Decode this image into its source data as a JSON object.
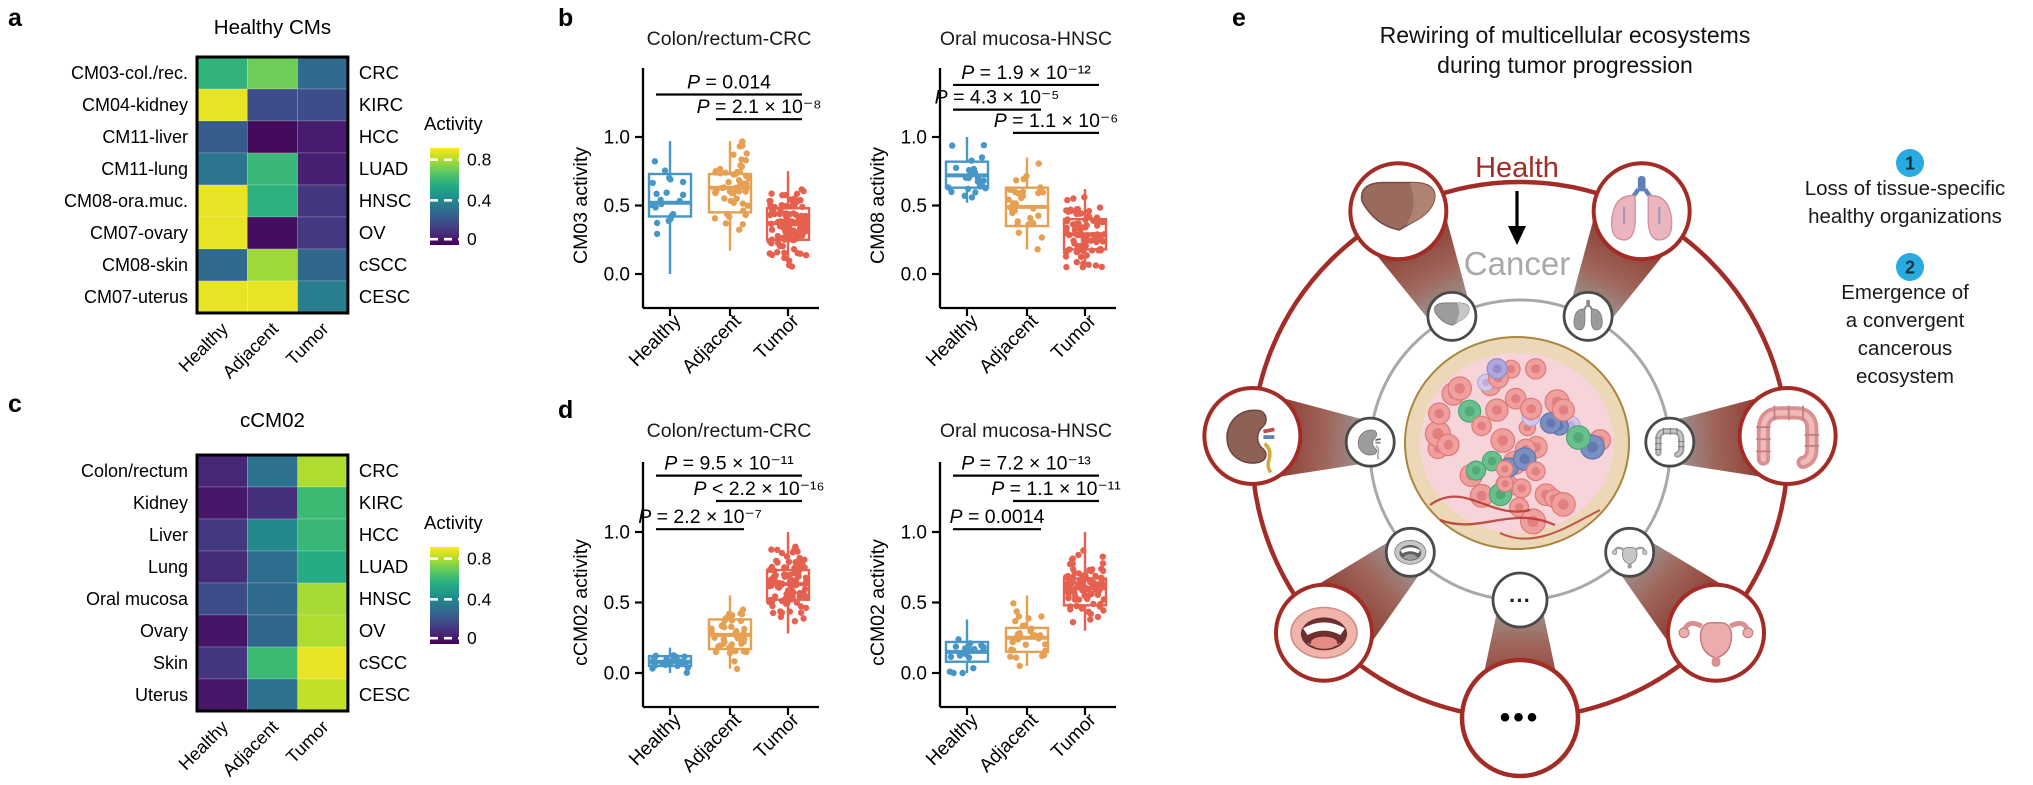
{
  "panel_labels": {
    "a": "a",
    "b": "b",
    "c": "c",
    "d": "d",
    "e": "e"
  },
  "colors": {
    "healthy": "#4796c8",
    "adjacent": "#e5a053",
    "tumor": "#e6604f",
    "dark_red": "#a32d26",
    "ring_gray": "#a8a8a8",
    "badge": "#29abe2",
    "cancer_text": "#a9a9a9"
  },
  "chart_data": [
    {
      "id": "heatmap_a",
      "type": "heatmap",
      "title": "Healthy CMs",
      "colormap": "viridis",
      "rows": [
        "CM03-col./rec.",
        "CM04-kidney",
        "CM11-liver",
        "CM11-lung",
        "CM08-ora.muc.",
        "CM07-ovary",
        "CM08-skin",
        "CM07-uterus"
      ],
      "cols": [
        "Healthy",
        "Adjacent",
        "Tumor"
      ],
      "row_right_labels": [
        "CRC",
        "KIRC",
        "HCC",
        "LUAD",
        "HNSC",
        "OV",
        "cSCC",
        "CESC"
      ],
      "legend_title": "Activity",
      "legend_tick_labels": [
        "0.8",
        "0.4",
        "0"
      ],
      "scale_max": 0.9,
      "values": [
        [
          0.58,
          0.7,
          0.31
        ],
        [
          0.87,
          0.21,
          0.21
        ],
        [
          0.26,
          0.02,
          0.07
        ],
        [
          0.35,
          0.6,
          0.08
        ],
        [
          0.87,
          0.57,
          0.14
        ],
        [
          0.87,
          0.03,
          0.15
        ],
        [
          0.31,
          0.77,
          0.3
        ],
        [
          0.87,
          0.87,
          0.38
        ]
      ]
    },
    {
      "id": "heatmap_c",
      "type": "heatmap",
      "title": "cCM02",
      "colormap": "viridis",
      "rows": [
        "Colon/rectum",
        "Kidney",
        "Liver",
        "Lung",
        "Oral mucosa",
        "Ovary",
        "Skin",
        "Uterus"
      ],
      "cols": [
        "Healthy",
        "Adjacent",
        "Tumor"
      ],
      "row_right_labels": [
        "CRC",
        "KIRC",
        "HCC",
        "LUAD",
        "HNSC",
        "OV",
        "cSCC",
        "CESC"
      ],
      "legend_title": "Activity",
      "legend_tick_labels": [
        "0.8",
        "0.4",
        "0"
      ],
      "scale_max": 0.9,
      "values": [
        [
          0.1,
          0.34,
          0.79
        ],
        [
          0.06,
          0.12,
          0.61
        ],
        [
          0.15,
          0.42,
          0.6
        ],
        [
          0.11,
          0.32,
          0.55
        ],
        [
          0.21,
          0.31,
          0.78
        ],
        [
          0.05,
          0.3,
          0.79
        ],
        [
          0.14,
          0.61,
          0.87
        ],
        [
          0.06,
          0.34,
          0.82
        ]
      ]
    },
    {
      "id": "box_b_left",
      "type": "box",
      "title": "Colon/rectum-CRC",
      "ylabel": "CM03 activity",
      "yticks": [
        0,
        0.5,
        1.0
      ],
      "ytick_labels": [
        "0.0",
        "0.5",
        "1.0"
      ],
      "ylim": [
        -0.07,
        1.45
      ],
      "categories": [
        "Healthy",
        "Adjacent",
        "Tumor"
      ],
      "series": [
        {
          "name": "Healthy",
          "color": "healthy",
          "n": 20,
          "whisker_low": 0.0,
          "q1": 0.42,
          "median": 0.52,
          "q3": 0.73,
          "whisker_high": 0.97
        },
        {
          "name": "Adjacent",
          "color": "adjacent",
          "n": 55,
          "whisker_low": 0.17,
          "q1": 0.45,
          "median": 0.63,
          "q3": 0.73,
          "whisker_high": 0.97
        },
        {
          "name": "Tumor",
          "color": "tumor",
          "n": 110,
          "whisker_low": 0.05,
          "q1": 0.25,
          "median": 0.37,
          "q3": 0.48,
          "whisker_high": 0.75
        }
      ],
      "comparisons": [
        {
          "from": 0,
          "to": 2,
          "label": "P = 0.014",
          "y": 1.31
        },
        {
          "from": 1,
          "to": 2,
          "label": "P = 2.1 × 10⁻⁸",
          "y": 1.13
        }
      ]
    },
    {
      "id": "box_b_right",
      "type": "box",
      "title": "Oral mucosa-HNSC",
      "ylabel": "CM08 activity",
      "yticks": [
        0,
        0.5,
        1.0
      ],
      "ytick_labels": [
        "0.0",
        "0.5",
        "1.0"
      ],
      "ylim": [
        -0.07,
        1.45
      ],
      "categories": [
        "Healthy",
        "Adjacent",
        "Tumor"
      ],
      "series": [
        {
          "name": "Healthy",
          "color": "healthy",
          "n": 25,
          "whisker_low": 0.52,
          "q1": 0.63,
          "median": 0.72,
          "q3": 0.82,
          "whisker_high": 1.0
        },
        {
          "name": "Adjacent",
          "color": "adjacent",
          "n": 30,
          "whisker_low": 0.18,
          "q1": 0.35,
          "median": 0.49,
          "q3": 0.63,
          "whisker_high": 0.85
        },
        {
          "name": "Tumor",
          "color": "tumor",
          "n": 85,
          "whisker_low": 0.05,
          "q1": 0.18,
          "median": 0.29,
          "q3": 0.4,
          "whisker_high": 0.62
        }
      ],
      "comparisons": [
        {
          "from": 0,
          "to": 2,
          "label": "P = 1.9 × 10⁻¹²",
          "y": 1.38
        },
        {
          "from": 0,
          "to": 1,
          "label": "P = 4.3 × 10⁻⁵",
          "y": 1.2
        },
        {
          "from": 1,
          "to": 2,
          "label": "P = 1.1 × 10⁻⁶",
          "y": 1.03
        }
      ]
    },
    {
      "id": "box_d_left",
      "type": "box",
      "title": "Colon/rectum-CRC",
      "ylabel": "cCM02 activity",
      "yticks": [
        0,
        0.5,
        1.0
      ],
      "ytick_labels": [
        "0.0",
        "0.5",
        "1.0"
      ],
      "ylim": [
        -0.07,
        1.45
      ],
      "categories": [
        "Healthy",
        "Adjacent",
        "Tumor"
      ],
      "series": [
        {
          "name": "Healthy",
          "color": "healthy",
          "n": 22,
          "whisker_low": 0.0,
          "q1": 0.05,
          "median": 0.08,
          "q3": 0.12,
          "whisker_high": 0.18
        },
        {
          "name": "Adjacent",
          "color": "adjacent",
          "n": 45,
          "whisker_low": 0.03,
          "q1": 0.17,
          "median": 0.27,
          "q3": 0.38,
          "whisker_high": 0.55
        },
        {
          "name": "Tumor",
          "color": "tumor",
          "n": 110,
          "whisker_low": 0.28,
          "q1": 0.52,
          "median": 0.63,
          "q3": 0.73,
          "whisker_high": 1.0
        }
      ],
      "comparisons": [
        {
          "from": 0,
          "to": 2,
          "label": "P = 9.5 × 10⁻¹¹",
          "y": 1.4
        },
        {
          "from": 1,
          "to": 2,
          "label": "P < 2.2 × 10⁻¹⁶",
          "y": 1.22
        },
        {
          "from": 0,
          "to": 1,
          "label": "P = 2.2 × 10⁻⁷",
          "y": 1.02
        }
      ]
    },
    {
      "id": "box_d_right",
      "type": "box",
      "title": "Oral mucosa-HNSC",
      "ylabel": "cCM02 activity",
      "yticks": [
        0,
        0.5,
        1.0
      ],
      "ytick_labels": [
        "0.0",
        "0.5",
        "1.0"
      ],
      "ylim": [
        -0.07,
        1.45
      ],
      "categories": [
        "Healthy",
        "Adjacent",
        "Tumor"
      ],
      "series": [
        {
          "name": "Healthy",
          "color": "healthy",
          "n": 20,
          "whisker_low": 0.0,
          "q1": 0.08,
          "median": 0.15,
          "q3": 0.22,
          "whisker_high": 0.38
        },
        {
          "name": "Adjacent",
          "color": "adjacent",
          "n": 30,
          "whisker_low": 0.05,
          "q1": 0.15,
          "median": 0.25,
          "q3": 0.32,
          "whisker_high": 0.55
        },
        {
          "name": "Tumor",
          "color": "tumor",
          "n": 85,
          "whisker_low": 0.3,
          "q1": 0.48,
          "median": 0.6,
          "q3": 0.67,
          "whisker_high": 1.0
        }
      ],
      "comparisons": [
        {
          "from": 0,
          "to": 2,
          "label": "P = 7.2 × 10⁻¹³",
          "y": 1.4
        },
        {
          "from": 1,
          "to": 2,
          "label": "P = 1.1 × 10⁻¹¹",
          "y": 1.22
        },
        {
          "from": 0,
          "to": 1,
          "label": "P = 0.0014",
          "y": 1.02
        }
      ]
    }
  ],
  "panel_e": {
    "title_lines": [
      "Rewiring of multicellular ecosystems",
      "during tumor progression"
    ],
    "health_label": "Health",
    "cancer_label": "Cancer",
    "inner_ellipsis": "···",
    "outer_ellipsis": "•••",
    "organs": [
      "liver",
      "lungs",
      "kidney",
      "intestine",
      "mouth",
      "uterus"
    ],
    "annotations": [
      {
        "number": "1",
        "lines": [
          "Loss of tissue-specific",
          "healthy organizations"
        ]
      },
      {
        "number": "2",
        "lines": [
          "Emergence of",
          "a convergent",
          "cancerous",
          "ecosystem"
        ]
      }
    ]
  }
}
